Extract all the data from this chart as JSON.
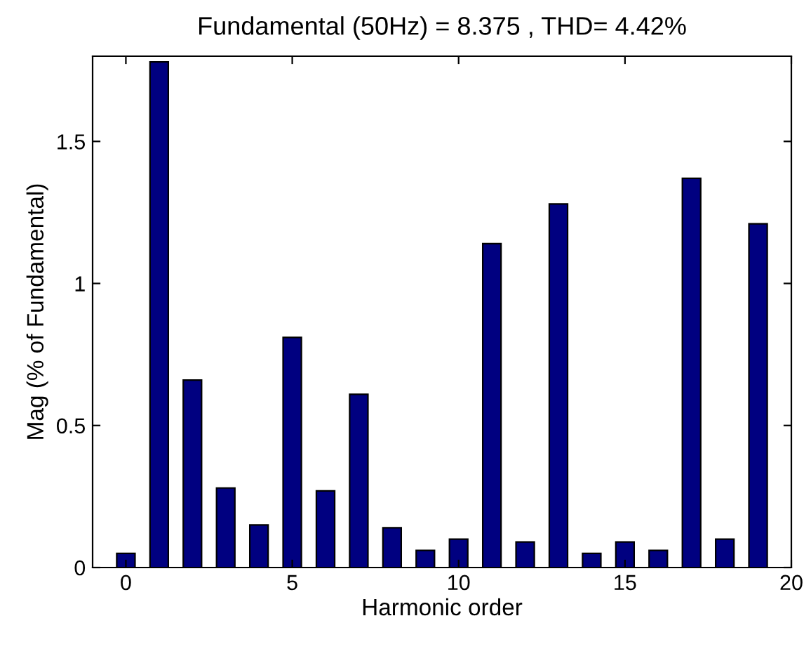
{
  "chart_data": {
    "type": "bar",
    "title": "Fundamental (50Hz) = 8.375 , THD= 4.42%",
    "xlabel": "Harmonic order",
    "ylabel": "Mag (% of Fundamental)",
    "x": [
      0,
      1,
      2,
      3,
      4,
      5,
      6,
      7,
      8,
      9,
      10,
      11,
      12,
      13,
      14,
      15,
      16,
      17,
      18,
      19
    ],
    "values": [
      0.05,
      1.78,
      0.66,
      0.28,
      0.15,
      0.81,
      0.27,
      0.61,
      0.14,
      0.06,
      0.1,
      1.14,
      0.09,
      1.28,
      0.05,
      0.09,
      0.06,
      1.37,
      0.1,
      1.21
    ],
    "color": "#000080",
    "xlim": [
      -1,
      20
    ],
    "xticks": [
      0,
      5,
      10,
      15,
      20
    ],
    "ylim": [
      0,
      1.8
    ],
    "yticks": [
      0,
      0.5,
      1,
      1.5
    ],
    "grid": false,
    "legend": false
  }
}
